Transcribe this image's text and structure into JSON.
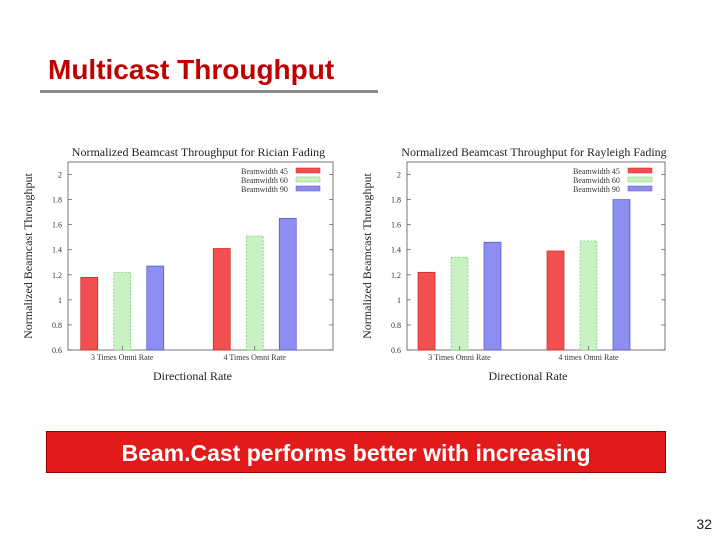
{
  "slide": {
    "title": "Multicast Throughput",
    "banner": "Beam.Cast performs better with increasing",
    "page_number": "32"
  },
  "colors": {
    "title": "#c00000",
    "banner": "#e31a1a",
    "series": [
      "#f25050",
      "#c9f2c4",
      "#8e8ef0"
    ]
  },
  "chart_data": [
    {
      "type": "bar",
      "title": "Normalized Beamcast Throughput for Rician Fading",
      "xlabel": "Directional Rate",
      "ylabel": "Normalized Beamcast Throughput",
      "categories": [
        "3 Times Omni Rate",
        "4 Times Omni Rate"
      ],
      "series": [
        {
          "name": "Beamwidth 45",
          "values": [
            1.18,
            1.41
          ]
        },
        {
          "name": "Beamwidth 60",
          "values": [
            1.22,
            1.51
          ]
        },
        {
          "name": "Beamwidth 90",
          "values": [
            1.27,
            1.65
          ]
        }
      ],
      "ylim": [
        0.6,
        2.1
      ],
      "yticks": [
        0.6,
        0.8,
        1.0,
        1.2,
        1.4,
        1.6,
        1.8,
        2.0
      ],
      "ytick_labels": [
        "0.6",
        "0.8",
        "1",
        "1.2",
        "1.4",
        "1.6",
        "1.8",
        "2"
      ],
      "legend": "top-right",
      "grid": false
    },
    {
      "type": "bar",
      "title": "Normalized Beamcast Throughput for Rayleigh Fading",
      "xlabel": "Directional Rate",
      "ylabel": "Normalized Beamcast Throughput",
      "categories": [
        "3 Times Omni Rate",
        "4 times Omni Rate"
      ],
      "series": [
        {
          "name": "Beamwidth 45",
          "values": [
            1.22,
            1.39
          ]
        },
        {
          "name": "Beamwidth 60",
          "values": [
            1.34,
            1.47
          ]
        },
        {
          "name": "Beamwidth 90",
          "values": [
            1.46,
            1.8
          ]
        }
      ],
      "ylim": [
        0.6,
        2.1
      ],
      "yticks": [
        0.6,
        0.8,
        1.0,
        1.2,
        1.4,
        1.6,
        1.8,
        2.0
      ],
      "ytick_labels": [
        "0.6",
        "0.8",
        "1",
        "1.2",
        "1.4",
        "1.6",
        "1.8",
        "2"
      ],
      "legend": "top-right",
      "grid": false
    }
  ]
}
